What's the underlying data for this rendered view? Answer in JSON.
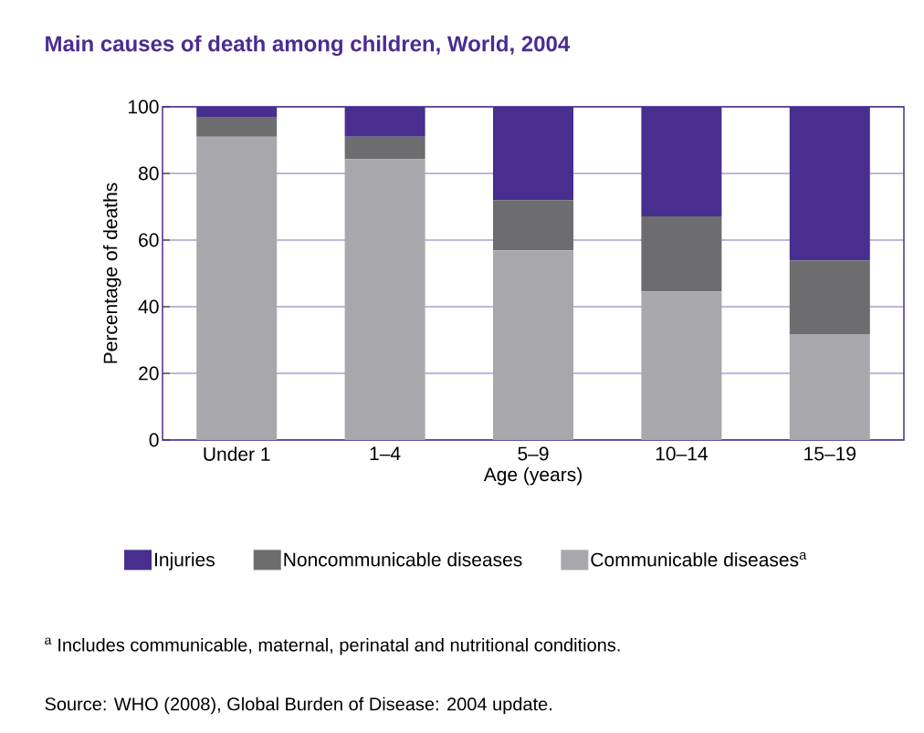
{
  "chart_data": {
    "type": "bar",
    "stacked": true,
    "title": "Main causes of death among children, World, 2004",
    "categories": [
      "Under 1",
      "1–4",
      "5–9",
      "10–14",
      "15–19"
    ],
    "series": [
      {
        "name": "Communicable diseases$^{a}$",
        "color": "#a8a8ac",
        "values": [
          91.0,
          84.3,
          56.9,
          44.6,
          31.8
        ]
      },
      {
        "name": "Noncommunicable diseases",
        "color": "#6d6d70",
        "values": [
          6.0,
          6.7,
          15.1,
          22.5,
          22.1
        ]
      },
      {
        "name": "Injuries",
        "color": "#482e8e",
        "values": [
          3.0,
          9.0,
          28.0,
          32.9,
          46.1
        ]
      }
    ],
    "xlabel": "Age (years)",
    "ylabel": "Percentage of deaths",
    "ylim": [
      0,
      100
    ],
    "yticks": [
      0,
      20,
      40,
      60,
      80,
      100
    ],
    "grid": "y",
    "legend": "bottom",
    "annotations": [
      "$^{a}$ Includes communicable, maternal, perinatal and nutritional conditions.",
      "Source: WHO (2008), Global Burden of Disease: 2004 update."
    ]
  }
}
